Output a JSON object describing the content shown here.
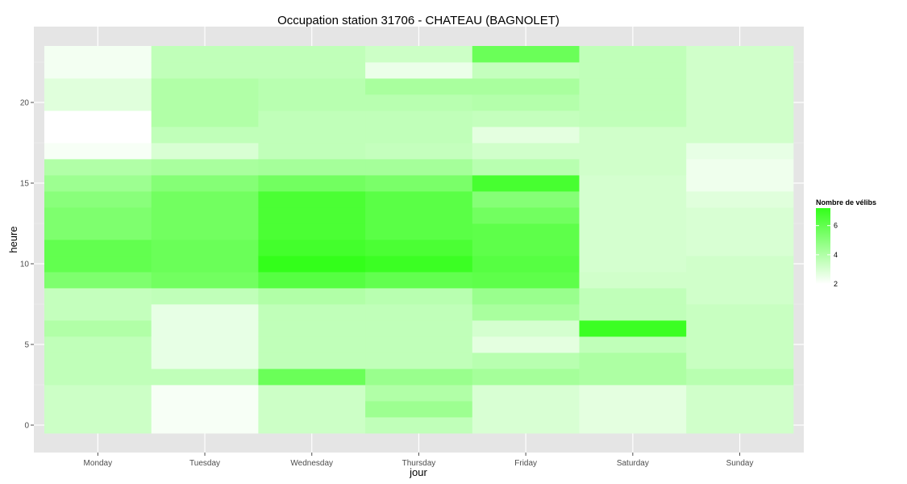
{
  "chart_data": {
    "type": "heatmap",
    "title": "Occupation station 31706 - CHATEAU (BAGNOLET)",
    "xlabel": "jour",
    "ylabel": "heure",
    "x_categories": [
      "Monday",
      "Tuesday",
      "Wednesday",
      "Thursday",
      "Friday",
      "Saturday",
      "Sunday"
    ],
    "y_ticks": [
      0,
      5,
      10,
      15,
      20
    ],
    "y_range": [
      -0.5,
      23.5
    ],
    "grid": true,
    "color_scale": {
      "low": "#ffffff",
      "high": "#33ff1a",
      "min": 2,
      "max": 7.2
    },
    "legend": {
      "title": "Nombre de vélibs",
      "breaks": [
        2,
        4,
        6
      ],
      "position": "right"
    },
    "values": {
      "Monday": [
        3.3,
        3.3,
        3.3,
        3.6,
        3.6,
        3.6,
        4.0,
        3.5,
        3.5,
        5.3,
        6.0,
        6.0,
        5.3,
        5.3,
        5.0,
        4.5,
        4.0,
        2.2,
        2.0,
        2.0,
        2.8,
        2.8,
        2.3,
        2.3
      ],
      "Tuesday": [
        2.2,
        2.2,
        2.2,
        3.6,
        2.6,
        2.6,
        2.6,
        2.6,
        3.6,
        5.6,
        5.8,
        5.8,
        5.6,
        5.6,
        5.6,
        5.1,
        4.2,
        3.0,
        3.6,
        4.0,
        4.0,
        4.0,
        3.6,
        3.6
      ],
      "Wednesday": [
        3.3,
        3.3,
        3.3,
        5.8,
        3.6,
        3.6,
        3.6,
        3.6,
        4.0,
        6.3,
        7.2,
        6.8,
        6.6,
        6.6,
        6.6,
        5.6,
        4.3,
        3.6,
        3.6,
        3.6,
        3.8,
        3.8,
        3.6,
        3.6
      ],
      "Thursday": [
        3.6,
        4.5,
        4.0,
        4.6,
        3.6,
        3.6,
        3.6,
        3.6,
        3.8,
        6.0,
        7.0,
        6.6,
        6.2,
        6.2,
        6.2,
        5.4,
        4.3,
        3.5,
        3.6,
        3.6,
        3.8,
        4.2,
        2.5,
        3.3
      ],
      "Friday": [
        3.0,
        3.0,
        3.0,
        4.3,
        3.8,
        2.7,
        3.1,
        4.2,
        4.6,
        6.1,
        6.3,
        6.1,
        6.1,
        5.6,
        5.1,
        6.7,
        3.8,
        3.2,
        2.7,
        3.5,
        3.9,
        4.2,
        3.5,
        5.8
      ],
      "Saturday": [
        2.7,
        2.7,
        2.7,
        4.1,
        4.1,
        3.6,
        7.0,
        3.6,
        3.6,
        3.2,
        3.1,
        3.1,
        3.1,
        3.1,
        3.1,
        3.1,
        3.2,
        3.2,
        3.2,
        3.6,
        3.6,
        3.6,
        3.6,
        3.6
      ],
      "Sunday": [
        3.2,
        3.2,
        3.2,
        3.8,
        3.4,
        3.4,
        3.4,
        3.4,
        3.2,
        3.2,
        3.2,
        3.0,
        3.0,
        3.0,
        2.8,
        2.4,
        2.4,
        2.6,
        3.2,
        3.2,
        3.2,
        3.2,
        3.2,
        3.2
      ]
    }
  }
}
